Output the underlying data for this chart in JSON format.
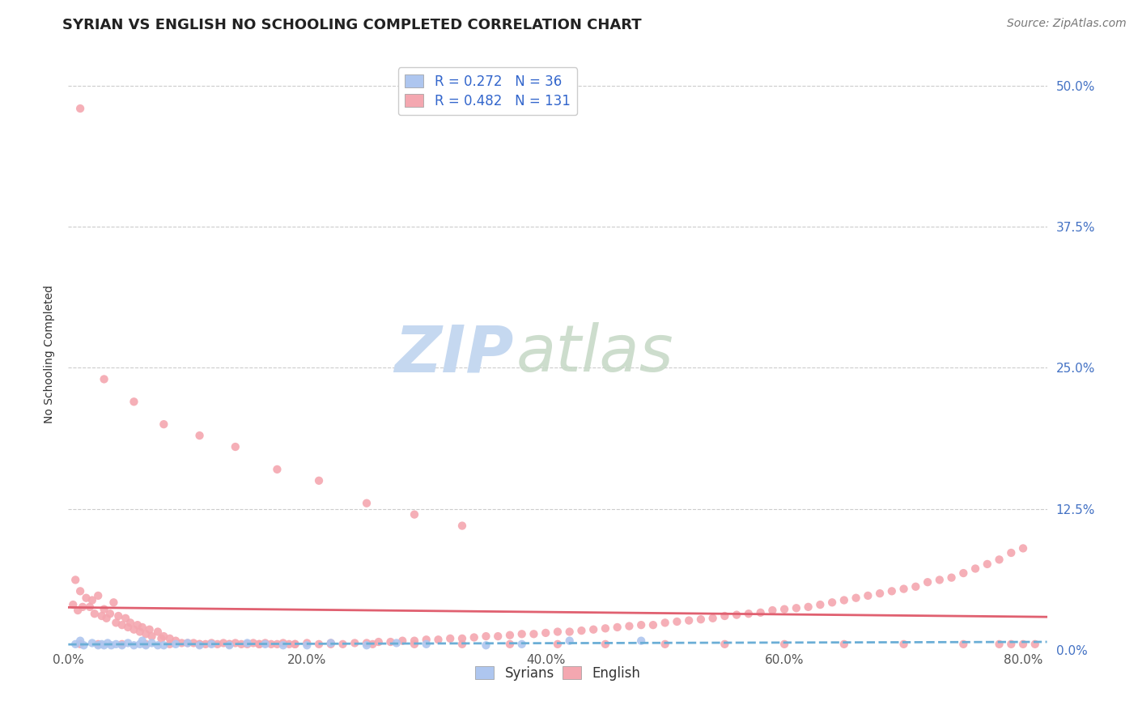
{
  "title": "SYRIAN VS ENGLISH NO SCHOOLING COMPLETED CORRELATION CHART",
  "source": "Source: ZipAtlas.com",
  "ylabel_label": "No Schooling Completed",
  "xlim": [
    0.0,
    0.82
  ],
  "ylim": [
    0.0,
    0.525
  ],
  "xticks": [
    0.0,
    0.2,
    0.4,
    0.6,
    0.8
  ],
  "xtick_labels": [
    "0.0%",
    "20.0%",
    "40.0%",
    "60.0%",
    "80.0%"
  ],
  "yticks": [
    0.0,
    0.125,
    0.25,
    0.375,
    0.5
  ],
  "ytick_labels": [
    "0.0%",
    "12.5%",
    "25.0%",
    "37.5%",
    "50.0%"
  ],
  "syrian_color": "#aec6ef",
  "english_color": "#f4a7b0",
  "syrian_line_color": "#6baed6",
  "english_line_color": "#e06070",
  "grid_color": "#cccccc",
  "bg_color": "#ffffff",
  "title_fontsize": 13,
  "axis_label_fontsize": 10,
  "tick_fontsize": 11,
  "source_fontsize": 10,
  "legend_r_color": "#3366cc",
  "legend_n_color": "#3366cc",
  "syrians_x": [
    0.006,
    0.01,
    0.013,
    0.02,
    0.025,
    0.028,
    0.03,
    0.033,
    0.036,
    0.04,
    0.045,
    0.05,
    0.055,
    0.06,
    0.062,
    0.065,
    0.07,
    0.075,
    0.08,
    0.09,
    0.1,
    0.11,
    0.12,
    0.135,
    0.15,
    0.165,
    0.18,
    0.2,
    0.22,
    0.25,
    0.275,
    0.3,
    0.35,
    0.38,
    0.42,
    0.48
  ],
  "syrians_y": [
    0.005,
    0.008,
    0.004,
    0.006,
    0.004,
    0.005,
    0.004,
    0.006,
    0.004,
    0.005,
    0.004,
    0.006,
    0.004,
    0.005,
    0.008,
    0.004,
    0.006,
    0.004,
    0.004,
    0.005,
    0.006,
    0.004,
    0.005,
    0.004,
    0.006,
    0.005,
    0.004,
    0.004,
    0.006,
    0.004,
    0.006,
    0.005,
    0.004,
    0.005,
    0.008,
    0.008
  ],
  "english_x": [
    0.004,
    0.006,
    0.008,
    0.01,
    0.012,
    0.015,
    0.018,
    0.02,
    0.022,
    0.025,
    0.028,
    0.03,
    0.032,
    0.035,
    0.038,
    0.04,
    0.042,
    0.045,
    0.048,
    0.05,
    0.052,
    0.055,
    0.058,
    0.06,
    0.062,
    0.065,
    0.068,
    0.07,
    0.075,
    0.078,
    0.08,
    0.085,
    0.09,
    0.095,
    0.1,
    0.105,
    0.11,
    0.115,
    0.12,
    0.125,
    0.13,
    0.135,
    0.14,
    0.145,
    0.15,
    0.155,
    0.16,
    0.165,
    0.17,
    0.175,
    0.18,
    0.185,
    0.19,
    0.2,
    0.21,
    0.22,
    0.23,
    0.24,
    0.25,
    0.26,
    0.27,
    0.28,
    0.29,
    0.3,
    0.31,
    0.32,
    0.33,
    0.34,
    0.35,
    0.36,
    0.37,
    0.38,
    0.39,
    0.4,
    0.41,
    0.42,
    0.43,
    0.44,
    0.45,
    0.46,
    0.47,
    0.48,
    0.49,
    0.5,
    0.51,
    0.52,
    0.53,
    0.54,
    0.55,
    0.56,
    0.57,
    0.58,
    0.59,
    0.6,
    0.61,
    0.62,
    0.63,
    0.64,
    0.65,
    0.66,
    0.67,
    0.68,
    0.69,
    0.7,
    0.71,
    0.72,
    0.73,
    0.74,
    0.75,
    0.76,
    0.77,
    0.78,
    0.79,
    0.8,
    0.01,
    0.025,
    0.045,
    0.065,
    0.085,
    0.11,
    0.135,
    0.16,
    0.19,
    0.22,
    0.255,
    0.29,
    0.33,
    0.37,
    0.41,
    0.45,
    0.5,
    0.55,
    0.6,
    0.65,
    0.7,
    0.75,
    0.78,
    0.79,
    0.8,
    0.81,
    0.01,
    0.03,
    0.055,
    0.08,
    0.11,
    0.14,
    0.175,
    0.21,
    0.25,
    0.29,
    0.33
  ],
  "english_y": [
    0.04,
    0.062,
    0.035,
    0.052,
    0.038,
    0.046,
    0.038,
    0.044,
    0.032,
    0.048,
    0.03,
    0.036,
    0.028,
    0.032,
    0.042,
    0.024,
    0.03,
    0.022,
    0.028,
    0.02,
    0.024,
    0.018,
    0.022,
    0.016,
    0.02,
    0.014,
    0.018,
    0.012,
    0.016,
    0.01,
    0.012,
    0.01,
    0.008,
    0.006,
    0.006,
    0.006,
    0.005,
    0.005,
    0.006,
    0.005,
    0.006,
    0.005,
    0.006,
    0.005,
    0.005,
    0.006,
    0.005,
    0.006,
    0.005,
    0.005,
    0.006,
    0.005,
    0.005,
    0.006,
    0.005,
    0.006,
    0.005,
    0.006,
    0.006,
    0.007,
    0.007,
    0.008,
    0.008,
    0.009,
    0.009,
    0.01,
    0.01,
    0.011,
    0.012,
    0.012,
    0.013,
    0.014,
    0.014,
    0.015,
    0.016,
    0.016,
    0.017,
    0.018,
    0.019,
    0.02,
    0.021,
    0.022,
    0.022,
    0.024,
    0.025,
    0.026,
    0.027,
    0.028,
    0.03,
    0.031,
    0.032,
    0.033,
    0.035,
    0.036,
    0.037,
    0.038,
    0.04,
    0.042,
    0.044,
    0.046,
    0.048,
    0.05,
    0.052,
    0.054,
    0.056,
    0.06,
    0.062,
    0.064,
    0.068,
    0.072,
    0.076,
    0.08,
    0.086,
    0.09,
    0.005,
    0.005,
    0.005,
    0.005,
    0.005,
    0.005,
    0.005,
    0.005,
    0.005,
    0.005,
    0.005,
    0.005,
    0.005,
    0.005,
    0.005,
    0.005,
    0.005,
    0.005,
    0.005,
    0.005,
    0.005,
    0.005,
    0.005,
    0.005,
    0.005,
    0.005,
    0.48,
    0.24,
    0.22,
    0.2,
    0.19,
    0.18,
    0.16,
    0.15,
    0.13,
    0.12,
    0.11
  ]
}
